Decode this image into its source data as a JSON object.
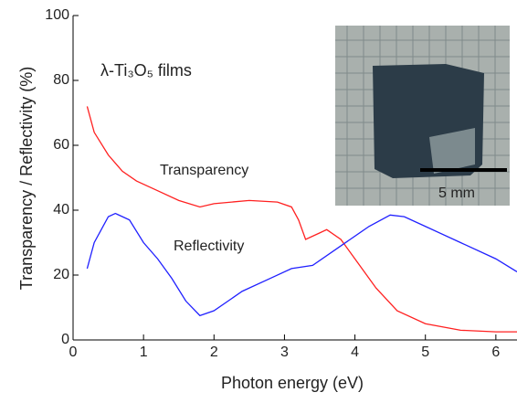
{
  "chart_data": {
    "type": "line",
    "xlabel": "Photon energy (eV)",
    "ylabel": "Transparency / Reflectivity (%)",
    "annotations": [
      "λ-Ti₃O₅ films",
      "Transparency",
      "Reflectivity",
      "5 mm"
    ],
    "xlim": [
      0,
      6.3
    ],
    "xticks": [
      0,
      1,
      2,
      3,
      4,
      5,
      6
    ],
    "ylim": [
      0,
      100
    ],
    "yticks": [
      0,
      20,
      40,
      60,
      80,
      100
    ],
    "series": [
      {
        "name": "Transparency",
        "color": "#ff2020",
        "x": [
          0.2,
          0.3,
          0.5,
          0.7,
          0.9,
          1.2,
          1.5,
          1.8,
          2.0,
          2.5,
          2.9,
          3.1,
          3.2,
          3.3,
          3.5,
          3.6,
          3.8,
          4.0,
          4.3,
          4.6,
          5.0,
          5.5,
          6.0,
          6.3
        ],
        "values": [
          72,
          64,
          57,
          52,
          49,
          46,
          43,
          41,
          42,
          43,
          42.5,
          41,
          37,
          31,
          33,
          34,
          31,
          25,
          16,
          9,
          5,
          3,
          2.5,
          2.5
        ]
      },
      {
        "name": "Reflectivity",
        "color": "#2020ff",
        "x": [
          0.2,
          0.3,
          0.5,
          0.6,
          0.8,
          1.0,
          1.2,
          1.4,
          1.6,
          1.8,
          2.0,
          2.4,
          2.8,
          3.1,
          3.4,
          3.8,
          4.2,
          4.5,
          4.7,
          5.0,
          5.5,
          6.0,
          6.3
        ],
        "values": [
          22,
          30,
          38,
          39,
          37,
          30,
          25,
          19,
          12,
          7.5,
          9,
          15,
          19,
          22,
          23,
          29,
          35,
          38.5,
          38,
          35,
          30,
          25,
          21
        ]
      }
    ]
  }
}
